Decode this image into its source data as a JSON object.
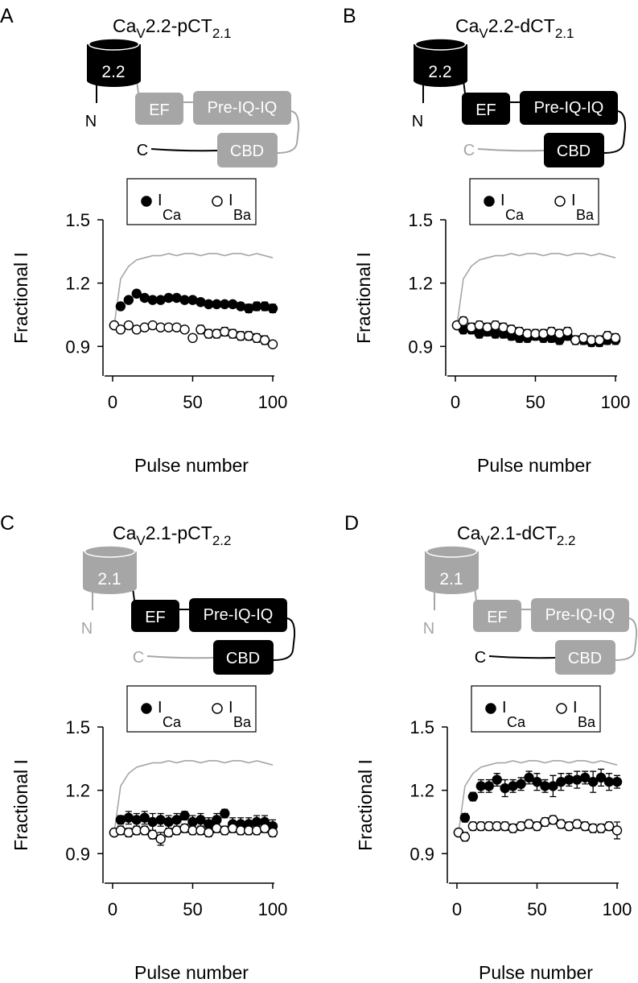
{
  "chart_data": [
    {
      "type": "scatter",
      "panel": "A",
      "title_parts": [
        "Ca",
        "V",
        "2.2-pCT",
        "2.1"
      ],
      "diagram": {
        "channel": "2.2",
        "n_label": "N",
        "c_label": "C",
        "ef": "EF",
        "preiq": "Pre-IQ-IQ",
        "cbd": "CBD",
        "n_color": "#000000",
        "ct_color": "#a6a6a6",
        "c_color": "#000000"
      },
      "ylabel": "Fractional I",
      "xlabel": "Pulse number",
      "xlim": [
        -5,
        101
      ],
      "ylim": [
        0.76,
        1.5
      ],
      "xticks": [
        0,
        50,
        100
      ],
      "yticks": [
        1.5,
        1.2,
        0.9
      ],
      "series": [
        {
          "name": "I",
          "name_sub": "Ca",
          "marker": "filled",
          "color": "#000000",
          "x": [
            1,
            5,
            10,
            15,
            20,
            25,
            30,
            35,
            40,
            45,
            50,
            55,
            60,
            65,
            70,
            75,
            80,
            85,
            90,
            95,
            100
          ],
          "values": [
            1.0,
            1.09,
            1.12,
            1.15,
            1.13,
            1.12,
            1.12,
            1.13,
            1.13,
            1.12,
            1.12,
            1.11,
            1.1,
            1.1,
            1.1,
            1.1,
            1.09,
            1.08,
            1.09,
            1.09,
            1.08
          ],
          "errors": [
            0.01,
            0.01,
            0.01,
            0.01,
            0.01,
            0.01,
            0.01,
            0.01,
            0.01,
            0.01,
            0.01,
            0.01,
            0.01,
            0.01,
            0.01,
            0.01,
            0.01,
            0.02,
            0.02,
            0.02,
            0.02
          ]
        },
        {
          "name": "I",
          "name_sub": "Ba",
          "marker": "open",
          "color": "#000000",
          "x": [
            1,
            5,
            10,
            15,
            20,
            25,
            30,
            35,
            40,
            45,
            50,
            55,
            60,
            65,
            70,
            75,
            80,
            85,
            90,
            95,
            100
          ],
          "values": [
            1.0,
            0.98,
            1.0,
            0.98,
            0.99,
            1.0,
            0.99,
            0.99,
            0.99,
            0.98,
            0.94,
            0.98,
            0.96,
            0.96,
            0.97,
            0.96,
            0.95,
            0.95,
            0.94,
            0.93,
            0.91
          ],
          "errors": [
            0.01,
            0.01,
            0.01,
            0.01,
            0.01,
            0.01,
            0.01,
            0.01,
            0.01,
            0.01,
            0.01,
            0.02,
            0.02,
            0.02,
            0.02,
            0.02,
            0.02,
            0.02,
            0.02,
            0.02,
            0.01
          ]
        },
        {
          "marker": "line",
          "color": "#a6a6a6",
          "x": [
            1,
            5,
            10,
            15,
            20,
            25,
            30,
            35,
            40,
            45,
            50,
            55,
            60,
            65,
            70,
            75,
            80,
            85,
            90,
            95,
            100
          ],
          "values": [
            1.0,
            1.22,
            1.28,
            1.31,
            1.32,
            1.33,
            1.33,
            1.34,
            1.33,
            1.34,
            1.34,
            1.33,
            1.34,
            1.34,
            1.33,
            1.34,
            1.34,
            1.33,
            1.34,
            1.33,
            1.32
          ]
        }
      ]
    },
    {
      "type": "scatter",
      "panel": "B",
      "title_parts": [
        "Ca",
        "V",
        "2.2-dCT",
        "2.1"
      ],
      "diagram": {
        "channel": "2.2",
        "n_label": "N",
        "c_label": "C",
        "ef": "EF",
        "preiq": "Pre-IQ-IQ",
        "cbd": "CBD",
        "n_color": "#000000",
        "ct_color": "#000000",
        "c_color": "#a6a6a6"
      },
      "ylabel": "Fractional I",
      "xlabel": "Pulse number",
      "xlim": [
        -5,
        101
      ],
      "ylim": [
        0.76,
        1.5
      ],
      "xticks": [
        0,
        50,
        100
      ],
      "yticks": [
        1.5,
        1.2,
        0.9
      ],
      "series": [
        {
          "name": "I",
          "name_sub": "Ca",
          "marker": "filled",
          "color": "#000000",
          "x": [
            1,
            5,
            10,
            15,
            20,
            25,
            30,
            35,
            40,
            45,
            50,
            55,
            60,
            65,
            70,
            75,
            80,
            85,
            90,
            95,
            100
          ],
          "values": [
            1.0,
            0.98,
            0.98,
            0.96,
            0.97,
            0.96,
            0.96,
            0.95,
            0.94,
            0.94,
            0.95,
            0.94,
            0.94,
            0.93,
            0.95,
            0.93,
            0.93,
            0.92,
            0.92,
            0.93,
            0.93
          ],
          "errors": [
            0.01,
            0.02,
            0.02,
            0.02,
            0.02,
            0.02,
            0.02,
            0.02,
            0.02,
            0.02,
            0.02,
            0.02,
            0.02,
            0.02,
            0.02,
            0.02,
            0.02,
            0.02,
            0.02,
            0.02,
            0.02
          ]
        },
        {
          "name": "I",
          "name_sub": "Ba",
          "marker": "open",
          "color": "#000000",
          "x": [
            1,
            5,
            10,
            15,
            20,
            25,
            30,
            35,
            40,
            45,
            50,
            55,
            60,
            65,
            70,
            75,
            80,
            85,
            90,
            95,
            100
          ],
          "values": [
            1.0,
            1.02,
            0.99,
            1.0,
            0.99,
            1.0,
            0.99,
            0.98,
            0.97,
            0.96,
            0.96,
            0.96,
            0.97,
            0.96,
            0.97,
            0.93,
            0.94,
            0.93,
            0.93,
            0.95,
            0.94
          ],
          "errors": [
            0.01,
            0.02,
            0.02,
            0.02,
            0.02,
            0.02,
            0.02,
            0.02,
            0.02,
            0.02,
            0.02,
            0.02,
            0.02,
            0.02,
            0.02,
            0.02,
            0.02,
            0.02,
            0.02,
            0.02,
            0.02
          ]
        },
        {
          "marker": "line",
          "color": "#a6a6a6",
          "x": [
            1,
            5,
            10,
            15,
            20,
            25,
            30,
            35,
            40,
            45,
            50,
            55,
            60,
            65,
            70,
            75,
            80,
            85,
            90,
            95,
            100
          ],
          "values": [
            1.0,
            1.22,
            1.28,
            1.31,
            1.32,
            1.33,
            1.33,
            1.34,
            1.33,
            1.34,
            1.34,
            1.33,
            1.34,
            1.34,
            1.33,
            1.34,
            1.34,
            1.33,
            1.34,
            1.33,
            1.32
          ]
        }
      ]
    },
    {
      "type": "scatter",
      "panel": "C",
      "title_parts": [
        "Ca",
        "V",
        "2.1-pCT",
        "2.2"
      ],
      "diagram": {
        "channel": "2.1",
        "n_label": "N",
        "c_label": "C",
        "ef": "EF",
        "preiq": "Pre-IQ-IQ",
        "cbd": "CBD",
        "n_color": "#a6a6a6",
        "ct_color": "#000000",
        "c_color": "#a6a6a6"
      },
      "ylabel": "Fractional I",
      "xlabel": "Pulse number",
      "xlim": [
        -5,
        101
      ],
      "ylim": [
        0.76,
        1.5
      ],
      "xticks": [
        0,
        50,
        100
      ],
      "yticks": [
        1.5,
        1.2,
        0.9
      ],
      "series": [
        {
          "name": "I",
          "name_sub": "Ca",
          "marker": "filled",
          "color": "#000000",
          "x": [
            1,
            5,
            10,
            15,
            20,
            25,
            30,
            35,
            40,
            45,
            50,
            55,
            60,
            65,
            70,
            75,
            80,
            85,
            90,
            95,
            100
          ],
          "values": [
            1.0,
            1.06,
            1.07,
            1.06,
            1.07,
            1.05,
            1.06,
            1.05,
            1.06,
            1.08,
            1.05,
            1.06,
            1.04,
            1.06,
            1.09,
            1.04,
            1.04,
            1.04,
            1.05,
            1.05,
            1.03
          ],
          "errors": [
            0.01,
            0.02,
            0.03,
            0.03,
            0.03,
            0.04,
            0.03,
            0.03,
            0.03,
            0.02,
            0.03,
            0.03,
            0.03,
            0.03,
            0.02,
            0.03,
            0.03,
            0.03,
            0.03,
            0.03,
            0.03
          ]
        },
        {
          "name": "I",
          "name_sub": "Ba",
          "marker": "open",
          "color": "#000000",
          "x": [
            1,
            5,
            10,
            15,
            20,
            25,
            30,
            35,
            40,
            45,
            50,
            55,
            60,
            65,
            70,
            75,
            80,
            85,
            90,
            95,
            100
          ],
          "values": [
            1.0,
            1.01,
            1.0,
            1.01,
            1.01,
            0.99,
            0.97,
            1.0,
            1.01,
            1.02,
            1.01,
            1.01,
            1.0,
            1.02,
            1.01,
            1.02,
            1.01,
            1.01,
            1.01,
            1.02,
            1.0
          ],
          "errors": [
            0.01,
            0.02,
            0.02,
            0.02,
            0.02,
            0.02,
            0.03,
            0.02,
            0.02,
            0.02,
            0.02,
            0.02,
            0.02,
            0.02,
            0.02,
            0.02,
            0.02,
            0.02,
            0.02,
            0.02,
            0.02
          ]
        },
        {
          "marker": "line",
          "color": "#a6a6a6",
          "x": [
            1,
            5,
            10,
            15,
            20,
            25,
            30,
            35,
            40,
            45,
            50,
            55,
            60,
            65,
            70,
            75,
            80,
            85,
            90,
            95,
            100
          ],
          "values": [
            1.0,
            1.22,
            1.28,
            1.31,
            1.32,
            1.33,
            1.33,
            1.34,
            1.33,
            1.34,
            1.34,
            1.33,
            1.34,
            1.34,
            1.33,
            1.34,
            1.34,
            1.33,
            1.34,
            1.33,
            1.32
          ]
        }
      ]
    },
    {
      "type": "scatter",
      "panel": "D",
      "title_parts": [
        "Ca",
        "V",
        "2.1-dCT",
        "2.2"
      ],
      "diagram": {
        "channel": "2.1",
        "n_label": "N",
        "c_label": "C",
        "ef": "EF",
        "preiq": "Pre-IQ-IQ",
        "cbd": "CBD",
        "n_color": "#a6a6a6",
        "ct_color": "#a6a6a6",
        "c_color": "#000000"
      },
      "ylabel": "Fractional I",
      "xlabel": "Pulse number",
      "xlim": [
        -5,
        101
      ],
      "ylim": [
        0.76,
        1.5
      ],
      "xticks": [
        0,
        50,
        100
      ],
      "yticks": [
        1.5,
        1.2,
        0.9
      ],
      "series": [
        {
          "name": "I",
          "name_sub": "Ca",
          "marker": "filled",
          "color": "#000000",
          "x": [
            1,
            5,
            10,
            15,
            20,
            25,
            30,
            35,
            40,
            45,
            50,
            55,
            60,
            65,
            70,
            75,
            80,
            85,
            90,
            95,
            100
          ],
          "values": [
            1.0,
            1.07,
            1.17,
            1.22,
            1.22,
            1.25,
            1.21,
            1.22,
            1.23,
            1.26,
            1.24,
            1.22,
            1.22,
            1.24,
            1.25,
            1.25,
            1.26,
            1.24,
            1.26,
            1.24,
            1.24
          ],
          "errors": [
            0.01,
            0.02,
            0.02,
            0.03,
            0.03,
            0.03,
            0.04,
            0.03,
            0.03,
            0.03,
            0.04,
            0.03,
            0.05,
            0.04,
            0.03,
            0.04,
            0.03,
            0.05,
            0.04,
            0.04,
            0.03
          ]
        },
        {
          "name": "I",
          "name_sub": "Ba",
          "marker": "open",
          "color": "#000000",
          "x": [
            1,
            5,
            10,
            15,
            20,
            25,
            30,
            35,
            40,
            45,
            50,
            55,
            60,
            65,
            70,
            75,
            80,
            85,
            90,
            95,
            100
          ],
          "values": [
            1.0,
            0.98,
            1.03,
            1.03,
            1.03,
            1.03,
            1.03,
            1.02,
            1.03,
            1.04,
            1.03,
            1.05,
            1.06,
            1.04,
            1.03,
            1.04,
            1.03,
            1.02,
            1.02,
            1.03,
            1.01
          ],
          "errors": [
            0.01,
            0.02,
            0.02,
            0.02,
            0.02,
            0.02,
            0.02,
            0.02,
            0.02,
            0.02,
            0.02,
            0.02,
            0.02,
            0.02,
            0.02,
            0.02,
            0.02,
            0.02,
            0.02,
            0.02,
            0.04
          ]
        },
        {
          "marker": "line",
          "color": "#a6a6a6",
          "x": [
            1,
            5,
            10,
            15,
            20,
            25,
            30,
            35,
            40,
            45,
            50,
            55,
            60,
            65,
            70,
            75,
            80,
            85,
            90,
            95,
            100
          ],
          "values": [
            1.0,
            1.22,
            1.28,
            1.31,
            1.32,
            1.33,
            1.33,
            1.34,
            1.33,
            1.34,
            1.34,
            1.33,
            1.34,
            1.34,
            1.33,
            1.34,
            1.34,
            1.33,
            1.34,
            1.33,
            1.32
          ]
        }
      ]
    }
  ]
}
